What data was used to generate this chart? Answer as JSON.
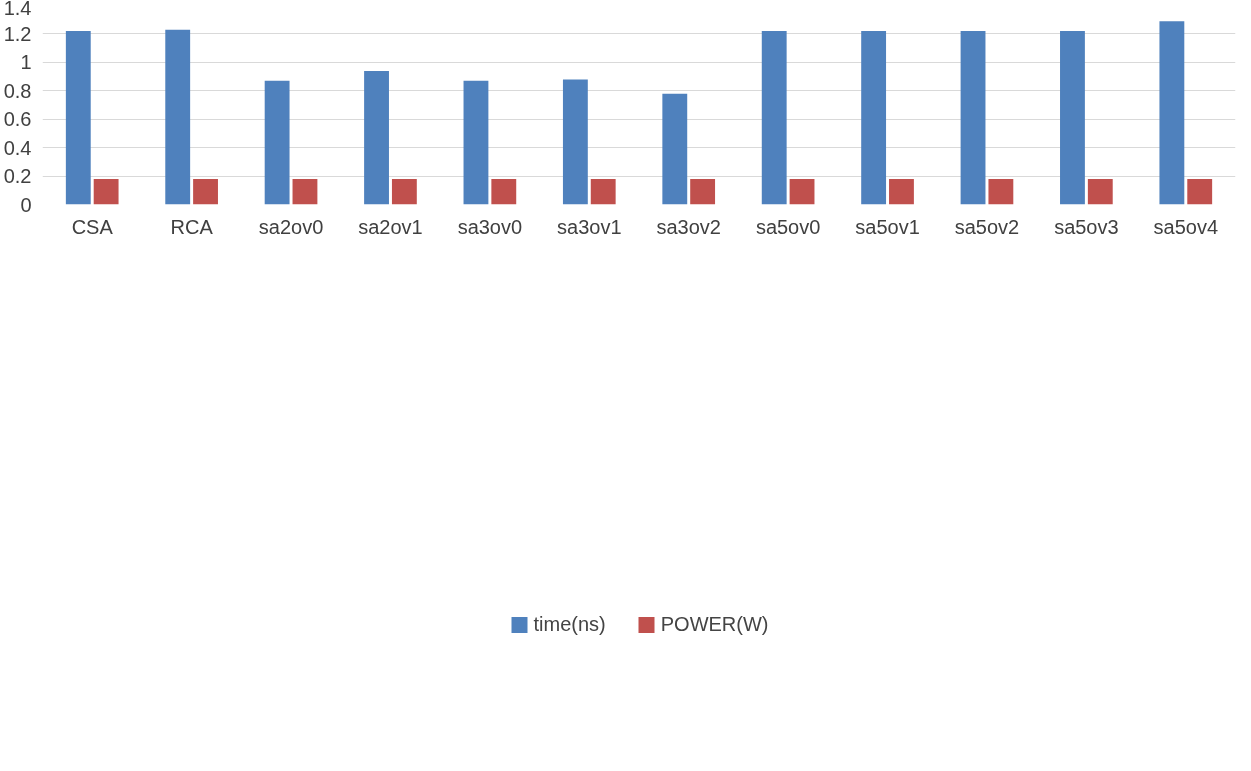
{
  "chart_data": {
    "type": "bar",
    "categories": [
      "CSA",
      "RCA",
      "sa2ov0",
      "sa2ov1",
      "sa3ov0",
      "sa3ov1",
      "sa3ov2",
      "sa5ov0",
      "sa5ov1",
      "sa5ov2",
      "sa5ov3",
      "sa5ov4"
    ],
    "series": [
      {
        "name": "time(ns)",
        "color": "#4f81bd",
        "values": [
          1.22,
          1.23,
          0.87,
          0.94,
          0.87,
          0.88,
          0.78,
          1.22,
          1.22,
          1.22,
          1.22,
          1.29
        ]
      },
      {
        "name": "POWER(W)",
        "color": "#c0504d",
        "values": [
          0.18,
          0.18,
          0.18,
          0.18,
          0.18,
          0.18,
          0.18,
          0.18,
          0.18,
          0.18,
          0.18,
          0.18
        ]
      }
    ],
    "ylim": [
      0,
      1.4
    ],
    "yticks": [
      0,
      {
        "value": 0.2,
        "label": "0.2"
      },
      {
        "value": 0.4,
        "label": "0.4"
      },
      {
        "value": 0.6,
        "label": "0.6"
      },
      {
        "value": 0.8,
        "label": "0.8"
      },
      1,
      {
        "value": 1.2,
        "label": "1.2"
      },
      {
        "value": 1.4,
        "label": "1.4"
      }
    ],
    "grid": "y",
    "legend": "bottom"
  }
}
